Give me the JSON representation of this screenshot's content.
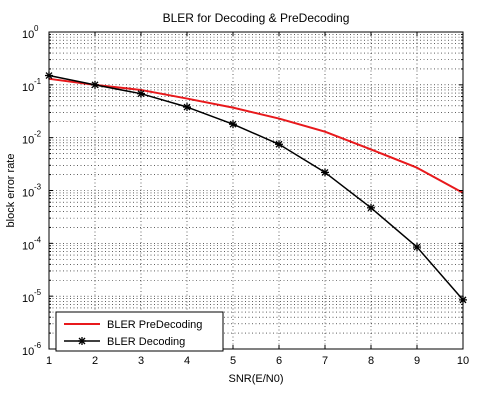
{
  "chart_data": {
    "type": "line",
    "title": "BLER for Decoding & PreDecoding",
    "xlabel": "SNR(E/N0)",
    "ylabel": "block error rate",
    "xlim": [
      1,
      10
    ],
    "ylim": [
      1e-06,
      1
    ],
    "yscale": "log",
    "grid": true,
    "legend_position": "bottom-left",
    "x": [
      1,
      2,
      3,
      4,
      5,
      6,
      7,
      8,
      9,
      10
    ],
    "x_ticks": [
      "1",
      "2",
      "3",
      "4",
      "5",
      "6",
      "7",
      "8",
      "9",
      "10"
    ],
    "y_ticks": [
      {
        "base": "10",
        "exp": "0",
        "value": 1
      },
      {
        "base": "10",
        "exp": "-1",
        "value": 0.1
      },
      {
        "base": "10",
        "exp": "-2",
        "value": 0.01
      },
      {
        "base": "10",
        "exp": "-3",
        "value": 0.001
      },
      {
        "base": "10",
        "exp": "-4",
        "value": 0.0001
      },
      {
        "base": "10",
        "exp": "-5",
        "value": 1e-05
      },
      {
        "base": "10",
        "exp": "-6",
        "value": 1e-06
      }
    ],
    "series": [
      {
        "name": "BLER PreDecoding",
        "color": "#e8191c",
        "marker": "none",
        "values": [
          0.13,
          0.1,
          0.08,
          0.055,
          0.037,
          0.023,
          0.013,
          0.006,
          0.0027,
          0.0009
        ]
      },
      {
        "name": "BLER Decoding",
        "color": "#000000",
        "marker": "star",
        "values": [
          0.15,
          0.1,
          0.068,
          0.038,
          0.018,
          0.0075,
          0.0022,
          0.00047,
          8.5e-05,
          8.5e-06
        ]
      }
    ]
  }
}
